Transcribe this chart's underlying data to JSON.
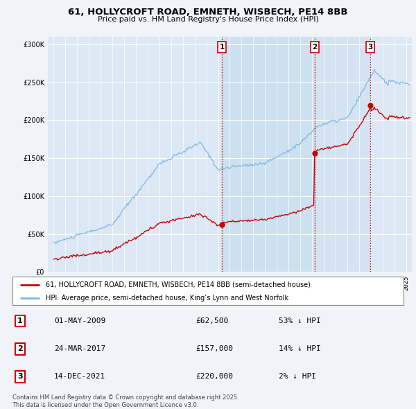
{
  "title_line1": "61, HOLLYCROFT ROAD, EMNETH, WISBECH, PE14 8BB",
  "title_line2": "Price paid vs. HM Land Registry's House Price Index (HPI)",
  "hpi_color": "#7ab8e0",
  "price_color": "#cc0000",
  "vline_color": "#cc0000",
  "shade_color": "#cce0f0",
  "background_color": "#f0f4f8",
  "plot_bg_color": "#dce8f5",
  "grid_color": "#ffffff",
  "legend_label_red": "61, HOLLYCROFT ROAD, EMNETH, WISBECH, PE14 8BB (semi-detached house)",
  "legend_label_blue": "HPI: Average price, semi-detached house, King’s Lynn and West Norfolk",
  "transactions": [
    {
      "num": 1,
      "date": "01-MAY-2009",
      "price": 62500,
      "pct": "53%",
      "dir": "↓",
      "x_year": 2009.33
    },
    {
      "num": 2,
      "date": "24-MAR-2017",
      "price": 157000,
      "pct": "14%",
      "dir": "↓",
      "x_year": 2017.22
    },
    {
      "num": 3,
      "date": "14-DEC-2021",
      "price": 220000,
      "pct": "2%",
      "dir": "↓",
      "x_year": 2021.95
    }
  ],
  "footer": "Contains HM Land Registry data © Crown copyright and database right 2025.\nThis data is licensed under the Open Government Licence v3.0.",
  "xlim_start": 1994.5,
  "xlim_end": 2025.5,
  "ylim": [
    0,
    310000
  ],
  "yticks": [
    0,
    50000,
    100000,
    150000,
    200000,
    250000,
    300000
  ]
}
